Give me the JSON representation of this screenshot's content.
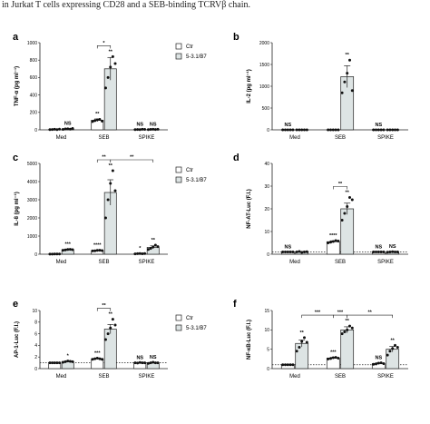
{
  "caption": "in Jurkat T cells expressing CD28 and a SEB-binding TCRVβ chain.",
  "chart_data": [
    {
      "panel": "a",
      "type": "bar",
      "ylabel": "TNF-α (pg ml⁻¹)",
      "ylim": [
        0,
        1000
      ],
      "yticks": [
        "0",
        "200",
        "400",
        "600",
        "800",
        "1000"
      ],
      "ytick_values": [
        0,
        200,
        400,
        600,
        800,
        1000
      ],
      "categories": [
        "Med",
        "SEB",
        "SPIKE"
      ],
      "series": [
        {
          "name": "Ctr",
          "values": [
            5,
            110,
            5
          ],
          "errors": [
            2,
            15,
            2
          ],
          "points": [
            [
              2,
              4,
              6,
              3,
              8
            ],
            [
              95,
              105,
              115,
              120,
              100
            ],
            [
              2,
              4,
              3,
              6,
              5
            ]
          ]
        },
        {
          "name": "5-3.1/B7",
          "values": [
            10,
            700,
            5
          ],
          "errors": [
            3,
            130,
            2
          ],
          "points": [
            [
              5,
              10,
              12,
              8,
              15
            ],
            [
              480,
              600,
              720,
              840,
              760
            ],
            [
              3,
              5,
              6,
              4,
              7
            ]
          ]
        }
      ],
      "annotations": [
        {
          "group": 0,
          "series": 1,
          "text": "NS"
        },
        {
          "group": 1,
          "series": 0,
          "text": "**"
        },
        {
          "group": 1,
          "series": 1,
          "text": "**"
        },
        {
          "group": 2,
          "series": 0,
          "text": "NS"
        },
        {
          "group": 2,
          "series": 1,
          "text": "NS"
        }
      ],
      "brackets": [
        {
          "from": [
            1,
            0
          ],
          "to": [
            1,
            1
          ],
          "text": "*"
        }
      ],
      "baseline": null,
      "legend": true
    },
    {
      "panel": "b",
      "type": "bar",
      "ylabel": "IL-2 (pg ml⁻¹)",
      "ylim": [
        0,
        2000
      ],
      "yticks": [
        "0",
        "500",
        "1000",
        "1500",
        "2000"
      ],
      "ytick_values": [
        0,
        500,
        1000,
        1500,
        2000
      ],
      "categories": [
        "Med",
        "SEB",
        "SPIKE"
      ],
      "series": [
        {
          "name": "Ctr",
          "values": [
            0,
            0,
            0
          ],
          "errors": [
            0,
            0,
            0
          ],
          "points": [
            [
              0,
              0,
              0,
              0,
              0
            ],
            [
              0,
              0,
              0,
              0,
              0
            ],
            [
              0,
              0,
              0,
              0,
              0
            ]
          ]
        },
        {
          "name": "5-3.1/B7",
          "values": [
            0,
            1220,
            0
          ],
          "errors": [
            0,
            250,
            0
          ],
          "points": [
            [
              0,
              0,
              0,
              0,
              0
            ],
            [
              850,
              1100,
              1300,
              1600,
              900
            ],
            [
              0,
              0,
              0,
              0,
              0
            ]
          ]
        }
      ],
      "annotations": [
        {
          "group": 0,
          "series": 0,
          "text": "NS"
        },
        {
          "group": 1,
          "series": 1,
          "text": "**"
        },
        {
          "group": 2,
          "series": 0,
          "text": "NS"
        }
      ],
      "brackets": [],
      "baseline": null,
      "legend": false
    },
    {
      "panel": "c",
      "type": "bar",
      "ylabel": "IL-8 (pg ml⁻¹)",
      "ylim": [
        0,
        5000
      ],
      "yticks": [
        "0",
        "1000",
        "2000",
        "3000",
        "4000",
        "5000"
      ],
      "ytick_values": [
        0,
        1000,
        2000,
        3000,
        4000,
        5000
      ],
      "categories": [
        "Med",
        "SEB",
        "SPIKE"
      ],
      "series": [
        {
          "name": "Ctr",
          "values": [
            10,
            200,
            30
          ],
          "errors": [
            5,
            20,
            10
          ],
          "points": [
            [
              5,
              8,
              12,
              10,
              15
            ],
            [
              180,
              190,
              210,
              220,
              200
            ],
            [
              20,
              30,
              40,
              25,
              35
            ]
          ]
        },
        {
          "name": "5-3.1/B7",
          "values": [
            250,
            3400,
            380
          ],
          "errors": [
            30,
            700,
            80
          ],
          "points": [
            [
              220,
              240,
              260,
              270,
              250
            ],
            [
              2000,
              3000,
              3900,
              4600,
              3500
            ],
            [
              260,
              320,
              400,
              500,
              420
            ]
          ]
        }
      ],
      "annotations": [
        {
          "group": 0,
          "series": 1,
          "text": "***"
        },
        {
          "group": 1,
          "series": 0,
          "text": "****"
        },
        {
          "group": 1,
          "series": 1,
          "text": "**"
        },
        {
          "group": 2,
          "series": 0,
          "text": "*"
        },
        {
          "group": 2,
          "series": 1,
          "text": "**"
        }
      ],
      "brackets": [
        {
          "from": [
            1,
            0
          ],
          "to": [
            1,
            1
          ],
          "text": "**"
        },
        {
          "from": [
            1,
            1
          ],
          "to": [
            2,
            1
          ],
          "text": "**"
        }
      ],
      "baseline": null,
      "legend": true
    },
    {
      "panel": "d",
      "type": "bar",
      "ylabel": "NF-AT-Luc (F.I.)",
      "ylim": [
        0,
        40
      ],
      "yticks": [
        "0",
        "10",
        "20",
        "30",
        "40"
      ],
      "ytick_values": [
        0,
        10,
        20,
        30,
        40
      ],
      "categories": [
        "Med",
        "SEB",
        "SPIKE"
      ],
      "series": [
        {
          "name": "Ctr",
          "values": [
            1,
            5.5,
            1
          ],
          "errors": [
            0.1,
            0.4,
            0.1
          ],
          "points": [
            [
              1,
              1,
              1,
              1,
              1
            ],
            [
              5,
              5.3,
              5.6,
              6,
              5.8
            ],
            [
              1,
              1,
              1,
              1,
              1
            ]
          ]
        },
        {
          "name": "5-3.1/B7",
          "values": [
            1,
            20,
            1
          ],
          "errors": [
            0.2,
            2.5,
            0.2
          ],
          "points": [
            [
              1,
              1.2,
              0.8,
              1,
              1.1
            ],
            [
              15,
              18,
              21,
              25,
              24
            ],
            [
              0.9,
              1,
              1.1,
              1,
              1
            ]
          ]
        }
      ],
      "annotations": [
        {
          "group": 0,
          "series": 0,
          "text": "NS"
        },
        {
          "group": 1,
          "series": 0,
          "text": "****"
        },
        {
          "group": 1,
          "series": 1,
          "text": "**"
        },
        {
          "group": 2,
          "series": 0,
          "text": "NS"
        },
        {
          "group": 2,
          "series": 1,
          "text": "NS"
        }
      ],
      "brackets": [
        {
          "from": [
            1,
            0
          ],
          "to": [
            1,
            1
          ],
          "text": "**"
        }
      ],
      "baseline": 1,
      "legend": false
    },
    {
      "panel": "e",
      "type": "bar",
      "ylabel": "AP-1-Luc (F.I.)",
      "ylim": [
        0,
        10
      ],
      "yticks": [
        "0",
        "2",
        "4",
        "6",
        "8",
        "10"
      ],
      "ytick_values": [
        0,
        2,
        4,
        6,
        8,
        10
      ],
      "categories": [
        "Med",
        "SEB",
        "SPIKE"
      ],
      "series": [
        {
          "name": "Ctr",
          "values": [
            1,
            1.7,
            1
          ],
          "errors": [
            0.05,
            0.1,
            0.05
          ],
          "points": [
            [
              1,
              1,
              1,
              1,
              1
            ],
            [
              1.6,
              1.7,
              1.8,
              1.7,
              1.6
            ],
            [
              1,
              0.95,
              1.05,
              1,
              1
            ]
          ]
        },
        {
          "name": "5-3.1/B7",
          "values": [
            1.2,
            6.8,
            1
          ],
          "errors": [
            0.1,
            0.8,
            0.1
          ],
          "points": [
            [
              1.1,
              1.2,
              1.3,
              1.25,
              1.2
            ],
            [
              5,
              6,
              7,
              8.5,
              7.5
            ],
            [
              0.9,
              1,
              1.1,
              1,
              1
            ]
          ]
        }
      ],
      "annotations": [
        {
          "group": 0,
          "series": 1,
          "text": "*"
        },
        {
          "group": 1,
          "series": 0,
          "text": "***"
        },
        {
          "group": 1,
          "series": 1,
          "text": "**"
        },
        {
          "group": 2,
          "series": 0,
          "text": "NS"
        },
        {
          "group": 2,
          "series": 1,
          "text": "NS"
        }
      ],
      "brackets": [
        {
          "from": [
            1,
            0
          ],
          "to": [
            1,
            1
          ],
          "text": "**"
        }
      ],
      "baseline": 1,
      "legend": true
    },
    {
      "panel": "f",
      "type": "bar",
      "ylabel": "NF-κB-Luc (F.I.)",
      "ylim": [
        0,
        15
      ],
      "yticks": [
        "0",
        "5",
        "10",
        "15"
      ],
      "ytick_values": [
        0,
        5,
        10,
        15
      ],
      "categories": [
        "Med",
        "SEB",
        "SPIKE"
      ],
      "series": [
        {
          "name": "Ctr",
          "values": [
            1,
            2.7,
            1.3
          ],
          "errors": [
            0.05,
            0.2,
            0.2
          ],
          "points": [
            [
              1,
              1,
              1,
              1,
              1
            ],
            [
              2.5,
              2.6,
              2.8,
              2.9,
              2.7
            ],
            [
              1.1,
              1.2,
              1.4,
              1.5,
              1.3
            ]
          ]
        },
        {
          "name": "5-3.1/B7",
          "values": [
            6.5,
            10,
            5
          ],
          "errors": [
            0.9,
            0.8,
            0.7
          ],
          "points": [
            [
              4.5,
              5.5,
              7,
              8,
              6.8
            ],
            [
              9,
              9.5,
              10,
              11,
              10.5
            ],
            [
              3.5,
              4.5,
              5.2,
              6,
              5.5
            ]
          ]
        }
      ],
      "annotations": [
        {
          "group": 0,
          "series": 1,
          "text": "**"
        },
        {
          "group": 1,
          "series": 0,
          "text": "***"
        },
        {
          "group": 1,
          "series": 1,
          "text": "**"
        },
        {
          "group": 2,
          "series": 0,
          "text": "NS"
        },
        {
          "group": 2,
          "series": 1,
          "text": "**"
        }
      ],
      "brackets": [
        {
          "from": [
            0,
            1
          ],
          "to": [
            1,
            0
          ],
          "text": "***"
        },
        {
          "from": [
            1,
            0
          ],
          "to": [
            1,
            1
          ],
          "text": "***"
        },
        {
          "from": [
            1,
            1
          ],
          "to": [
            2,
            1
          ],
          "text": "**"
        }
      ],
      "baseline": 1,
      "legend": false
    }
  ]
}
